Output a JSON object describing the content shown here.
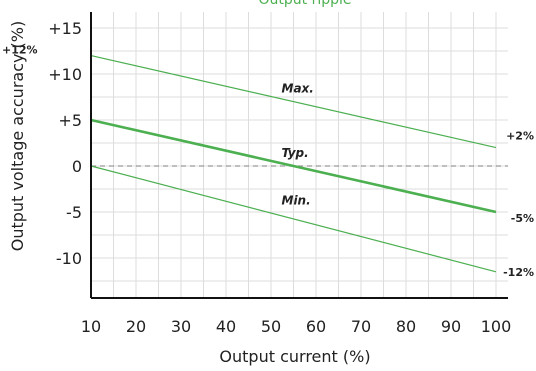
{
  "chart_data": {
    "type": "line",
    "title": "Output ripple",
    "xlabel": "Output current (%)",
    "ylabel": "Output voltage accuracy (%)",
    "xlim": [
      10,
      100
    ],
    "ylim": [
      -15,
      17
    ],
    "x_ticks": [
      10,
      20,
      30,
      40,
      50,
      60,
      70,
      80,
      90,
      100
    ],
    "y_ticks": [
      {
        "value": 15,
        "label": "+15"
      },
      {
        "value": 10,
        "label": "+10"
      },
      {
        "value": 5,
        "label": "+5"
      },
      {
        "value": 0,
        "label": "0"
      },
      {
        "value": -5,
        "label": "-5"
      },
      {
        "value": -10,
        "label": "-10"
      }
    ],
    "grid": true,
    "series": [
      {
        "name": "Max.",
        "x": [
          10,
          100
        ],
        "values": [
          12,
          2
        ],
        "color": "#4caf50",
        "label_at": [
          55,
          8
        ],
        "end_label": "+2%",
        "start_label": "+12%"
      },
      {
        "name": "Typ.",
        "x": [
          10,
          100
        ],
        "values": [
          5,
          -5
        ],
        "color": "#4caf50",
        "label_at": [
          55,
          1
        ],
        "end_label": "-5%"
      },
      {
        "name": "Min.",
        "x": [
          10,
          100
        ],
        "values": [
          0,
          -11.5
        ],
        "color": "#4caf50",
        "label_at": [
          55,
          -4.2
        ],
        "end_label": "-12%"
      }
    ],
    "reference_line": {
      "y": 0,
      "style": "dashed",
      "color": "#999999"
    }
  }
}
